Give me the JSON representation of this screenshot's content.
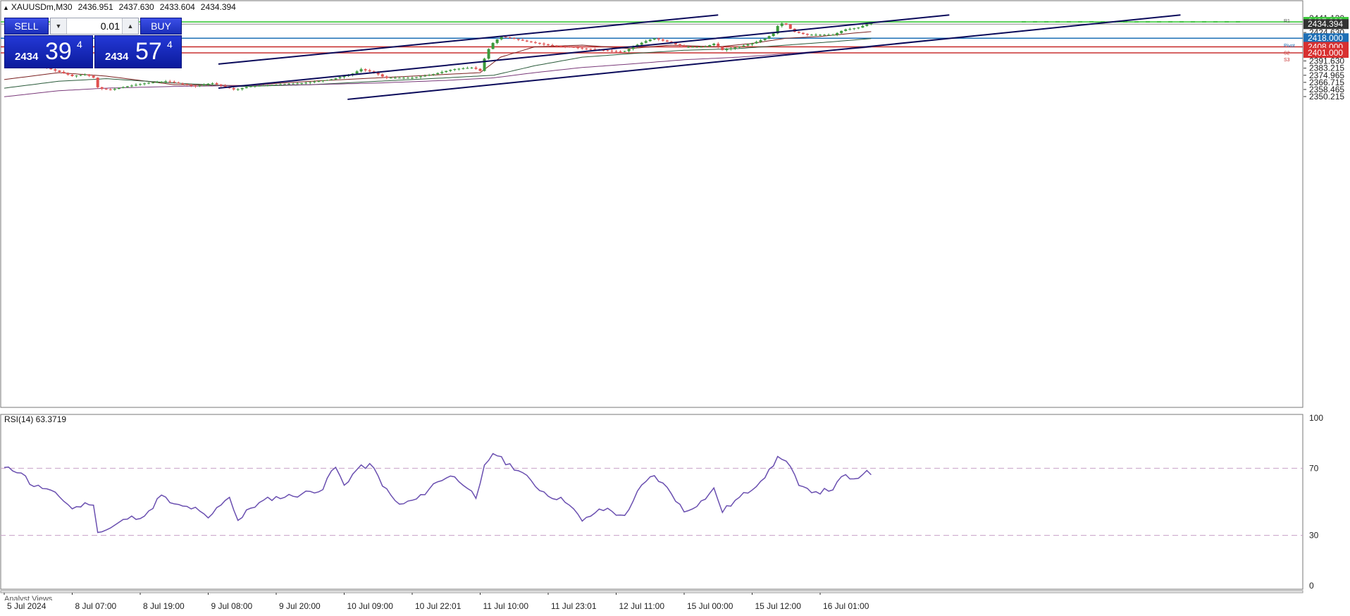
{
  "symbol_header": {
    "symbol": "XAUUSDm,M30",
    "open": "2436.951",
    "high": "2437.630",
    "low": "2433.604",
    "close": "2434.394"
  },
  "trade_panel": {
    "sell_label": "SELL",
    "buy_label": "BUY",
    "lot_value": "0.01",
    "sell_price": {
      "small": "2434",
      "big": "39",
      "sup": "4"
    },
    "buy_price": {
      "small": "2434",
      "big": "57",
      "sup": "4"
    }
  },
  "colors": {
    "up_candle": "#3c9a3c",
    "down_candle": "#e05050",
    "channel_line": "#0a0a5a",
    "pivot_line": "#1e6fb5",
    "support_line": "#c83232",
    "target_line": "#3cc83c",
    "current_price_line": "#888888",
    "rsi_line": "#6a4fb0"
  },
  "price_axis": {
    "labels": [
      "2441.130",
      "2432.880",
      "2424.630",
      "2416.380",
      "2399.880",
      "2391.630",
      "2383.215",
      "2374.965",
      "2366.715",
      "2358.465",
      "2350.215"
    ],
    "markers": [
      {
        "name": "target-price-marker",
        "value": "2437.000",
        "color": "#3cc83c"
      },
      {
        "name": "current-price-marker",
        "value": "2434.394",
        "color": "#333333"
      },
      {
        "name": "pivot-price-marker",
        "value": "2418.000",
        "color": "#1e6fb5"
      },
      {
        "name": "s2-price-marker",
        "value": "2408.000",
        "color": "#d83030"
      },
      {
        "name": "s3-price-marker",
        "value": "2401.000",
        "color": "#d83030"
      }
    ],
    "line_tags": [
      "R2",
      "R1",
      "Pivot",
      "S2",
      "S3"
    ]
  },
  "time_axis": {
    "labels": [
      "5 Jul 2024",
      "8 Jul 07:00",
      "8 Jul 19:00",
      "9 Jul 08:00",
      "9 Jul 20:00",
      "10 Jul 09:00",
      "10 Jul 22:01",
      "11 Jul 10:00",
      "11 Jul 23:01",
      "12 Jul 11:00",
      "15 Jul 00:00",
      "15 Jul 12:00",
      "16 Jul 01:00"
    ]
  },
  "rsi": {
    "label": "RSI(14) 63.3719",
    "axis_labels": [
      "100",
      "70",
      "30",
      "0"
    ]
  },
  "analyst_views_label": "Analyst Views",
  "chart_data": [
    {
      "type": "candlestick",
      "title": "XAUUSDm,M30",
      "ylim": [
        2346,
        2445
      ],
      "x": [
        "5 Jul 2024",
        "8 Jul 07:00",
        "8 Jul 19:00",
        "9 Jul 08:00",
        "9 Jul 20:00",
        "10 Jul 09:00",
        "10 Jul 22:01",
        "11 Jul 10:00",
        "11 Jul 23:01",
        "12 Jul 11:00",
        "15 Jul 00:00",
        "15 Jul 12:00",
        "16 Jul 01:00"
      ],
      "close_path": [
        [
          0,
          2391
        ],
        [
          0.35,
          2388
        ],
        [
          0.6,
          2384
        ],
        [
          0.85,
          2378
        ],
        [
          1.0,
          2374
        ],
        [
          1.2,
          2376
        ],
        [
          1.32,
          2372
        ],
        [
          1.38,
          2360
        ],
        [
          1.55,
          2358
        ],
        [
          1.8,
          2362
        ],
        [
          2.1,
          2366
        ],
        [
          2.4,
          2368
        ],
        [
          2.8,
          2362
        ],
        [
          3.05,
          2366
        ],
        [
          3.4,
          2358
        ],
        [
          3.6,
          2362
        ],
        [
          4.0,
          2364
        ],
        [
          4.4,
          2366
        ],
        [
          4.8,
          2370
        ],
        [
          5.1,
          2376
        ],
        [
          5.25,
          2382
        ],
        [
          5.45,
          2378
        ],
        [
          5.6,
          2372
        ],
        [
          6.0,
          2372
        ],
        [
          6.3,
          2376
        ],
        [
          6.6,
          2382
        ],
        [
          6.9,
          2384
        ],
        [
          7.0,
          2380
        ],
        [
          7.05,
          2392
        ],
        [
          7.15,
          2410
        ],
        [
          7.3,
          2420
        ],
        [
          7.45,
          2418
        ],
        [
          7.7,
          2414
        ],
        [
          8.0,
          2410
        ],
        [
          8.3,
          2408
        ],
        [
          8.5,
          2406
        ],
        [
          8.8,
          2404
        ],
        [
          9.1,
          2402
        ],
        [
          9.35,
          2412
        ],
        [
          9.55,
          2418
        ],
        [
          9.75,
          2414
        ],
        [
          10.0,
          2408
        ],
        [
          10.3,
          2408
        ],
        [
          10.45,
          2412
        ],
        [
          10.55,
          2404
        ],
        [
          10.8,
          2408
        ],
        [
          11.0,
          2412
        ],
        [
          11.2,
          2418
        ],
        [
          11.32,
          2424
        ],
        [
          11.4,
          2436
        ],
        [
          11.5,
          2434
        ],
        [
          11.6,
          2426
        ],
        [
          11.8,
          2422
        ],
        [
          12.0,
          2422
        ],
        [
          12.2,
          2422
        ],
        [
          12.35,
          2428
        ],
        [
          12.55,
          2430
        ],
        [
          12.75,
          2436
        ],
        [
          12.8,
          2434.394
        ]
      ],
      "moving_averages": [
        {
          "name": "MA fast",
          "color": "#7a2020",
          "path": [
            [
              0,
              2370
            ],
            [
              0.8,
              2378
            ],
            [
              1.5,
              2374
            ],
            [
              2.5,
              2364
            ],
            [
              3.5,
              2363
            ],
            [
              4.5,
              2368
            ],
            [
              5.5,
              2372
            ],
            [
              6.5,
              2376
            ],
            [
              7.0,
              2378
            ],
            [
              7.3,
              2396
            ],
            [
              7.8,
              2408
            ],
            [
              8.5,
              2410
            ],
            [
              9.2,
              2406
            ],
            [
              9.8,
              2410
            ],
            [
              10.5,
              2408
            ],
            [
              11.0,
              2412
            ],
            [
              11.5,
              2418
            ],
            [
              12.0,
              2420
            ],
            [
              12.5,
              2424
            ],
            [
              12.8,
              2426
            ]
          ]
        },
        {
          "name": "MA medium",
          "color": "#2a5a3a",
          "path": [
            [
              0,
              2360
            ],
            [
              0.8,
              2368
            ],
            [
              1.5,
              2371
            ],
            [
              2.5,
              2366
            ],
            [
              3.5,
              2362
            ],
            [
              4.5,
              2364
            ],
            [
              5.5,
              2368
            ],
            [
              6.5,
              2372
            ],
            [
              7.2,
              2375
            ],
            [
              7.8,
              2386
            ],
            [
              8.5,
              2396
            ],
            [
              9.2,
              2400
            ],
            [
              10.0,
              2404
            ],
            [
              10.8,
              2406
            ],
            [
              11.5,
              2410
            ],
            [
              12.2,
              2414
            ],
            [
              12.8,
              2418
            ]
          ]
        },
        {
          "name": "MA slow",
          "color": "#7a3a7a",
          "path": [
            [
              0,
              2350
            ],
            [
              0.8,
              2357
            ],
            [
              1.5,
              2360
            ],
            [
              2.5,
              2362
            ],
            [
              3.5,
              2363
            ],
            [
              4.5,
              2364
            ],
            [
              5.5,
              2366
            ],
            [
              6.5,
              2369
            ],
            [
              7.2,
              2372
            ],
            [
              7.8,
              2378
            ],
            [
              8.5,
              2384
            ],
            [
              9.2,
              2388
            ],
            [
              10.0,
              2393
            ],
            [
              10.8,
              2396
            ],
            [
              11.5,
              2400
            ],
            [
              12.2,
              2404
            ],
            [
              12.8,
              2408
            ]
          ]
        }
      ],
      "channel": {
        "upper": [
          [
            3.15,
            2388
          ],
          [
            10.5,
            2445
          ]
        ],
        "middle": [
          [
            3.15,
            2360
          ],
          [
            13.9,
            2445
          ]
        ],
        "lower": [
          [
            5.05,
            2347
          ],
          [
            17.3,
            2445
          ]
        ]
      },
      "horizontal_levels": [
        {
          "name": "target",
          "value": 2437.0,
          "color": "#3cc83c"
        },
        {
          "name": "current",
          "value": 2434.394,
          "color": "#888888"
        },
        {
          "name": "pivot",
          "value": 2418.0,
          "color": "#1e6fb5"
        },
        {
          "name": "s2",
          "value": 2408.0,
          "color": "#c83232"
        },
        {
          "name": "s3",
          "value": 2401.0,
          "color": "#c83232"
        }
      ]
    },
    {
      "type": "line",
      "title": "RSI(14) 63.3719",
      "ylim": [
        0,
        100
      ],
      "levels": [
        70,
        30
      ],
      "path": [
        [
          0,
          70
        ],
        [
          0.25,
          68
        ],
        [
          0.4,
          60
        ],
        [
          0.6,
          58
        ],
        [
          0.85,
          52
        ],
        [
          1.0,
          46
        ],
        [
          1.15,
          48
        ],
        [
          1.3,
          50
        ],
        [
          1.38,
          32
        ],
        [
          1.55,
          34
        ],
        [
          1.8,
          40
        ],
        [
          2.1,
          42
        ],
        [
          2.3,
          54
        ],
        [
          2.5,
          48
        ],
        [
          2.8,
          46
        ],
        [
          3.0,
          40
        ],
        [
          3.3,
          54
        ],
        [
          3.45,
          38
        ],
        [
          3.6,
          46
        ],
        [
          3.9,
          52
        ],
        [
          4.3,
          54
        ],
        [
          4.7,
          58
        ],
        [
          4.85,
          72
        ],
        [
          5.0,
          60
        ],
        [
          5.2,
          70
        ],
        [
          5.4,
          72
        ],
        [
          5.6,
          58
        ],
        [
          5.8,
          48
        ],
        [
          6.1,
          52
        ],
        [
          6.3,
          60
        ],
        [
          6.55,
          66
        ],
        [
          6.8,
          60
        ],
        [
          6.95,
          50
        ],
        [
          7.05,
          70
        ],
        [
          7.2,
          80
        ],
        [
          7.35,
          74
        ],
        [
          7.6,
          68
        ],
        [
          7.8,
          60
        ],
        [
          8.0,
          54
        ],
        [
          8.3,
          50
        ],
        [
          8.5,
          38
        ],
        [
          8.7,
          44
        ],
        [
          8.9,
          46
        ],
        [
          9.1,
          40
        ],
        [
          9.35,
          58
        ],
        [
          9.55,
          66
        ],
        [
          9.8,
          56
        ],
        [
          10.0,
          44
        ],
        [
          10.25,
          50
        ],
        [
          10.45,
          58
        ],
        [
          10.55,
          44
        ],
        [
          10.8,
          52
        ],
        [
          11.0,
          58
        ],
        [
          11.25,
          68
        ],
        [
          11.4,
          78
        ],
        [
          11.55,
          72
        ],
        [
          11.7,
          58
        ],
        [
          12.0,
          56
        ],
        [
          12.2,
          58
        ],
        [
          12.35,
          66
        ],
        [
          12.55,
          62
        ],
        [
          12.7,
          70
        ],
        [
          12.8,
          63.37
        ]
      ]
    }
  ]
}
